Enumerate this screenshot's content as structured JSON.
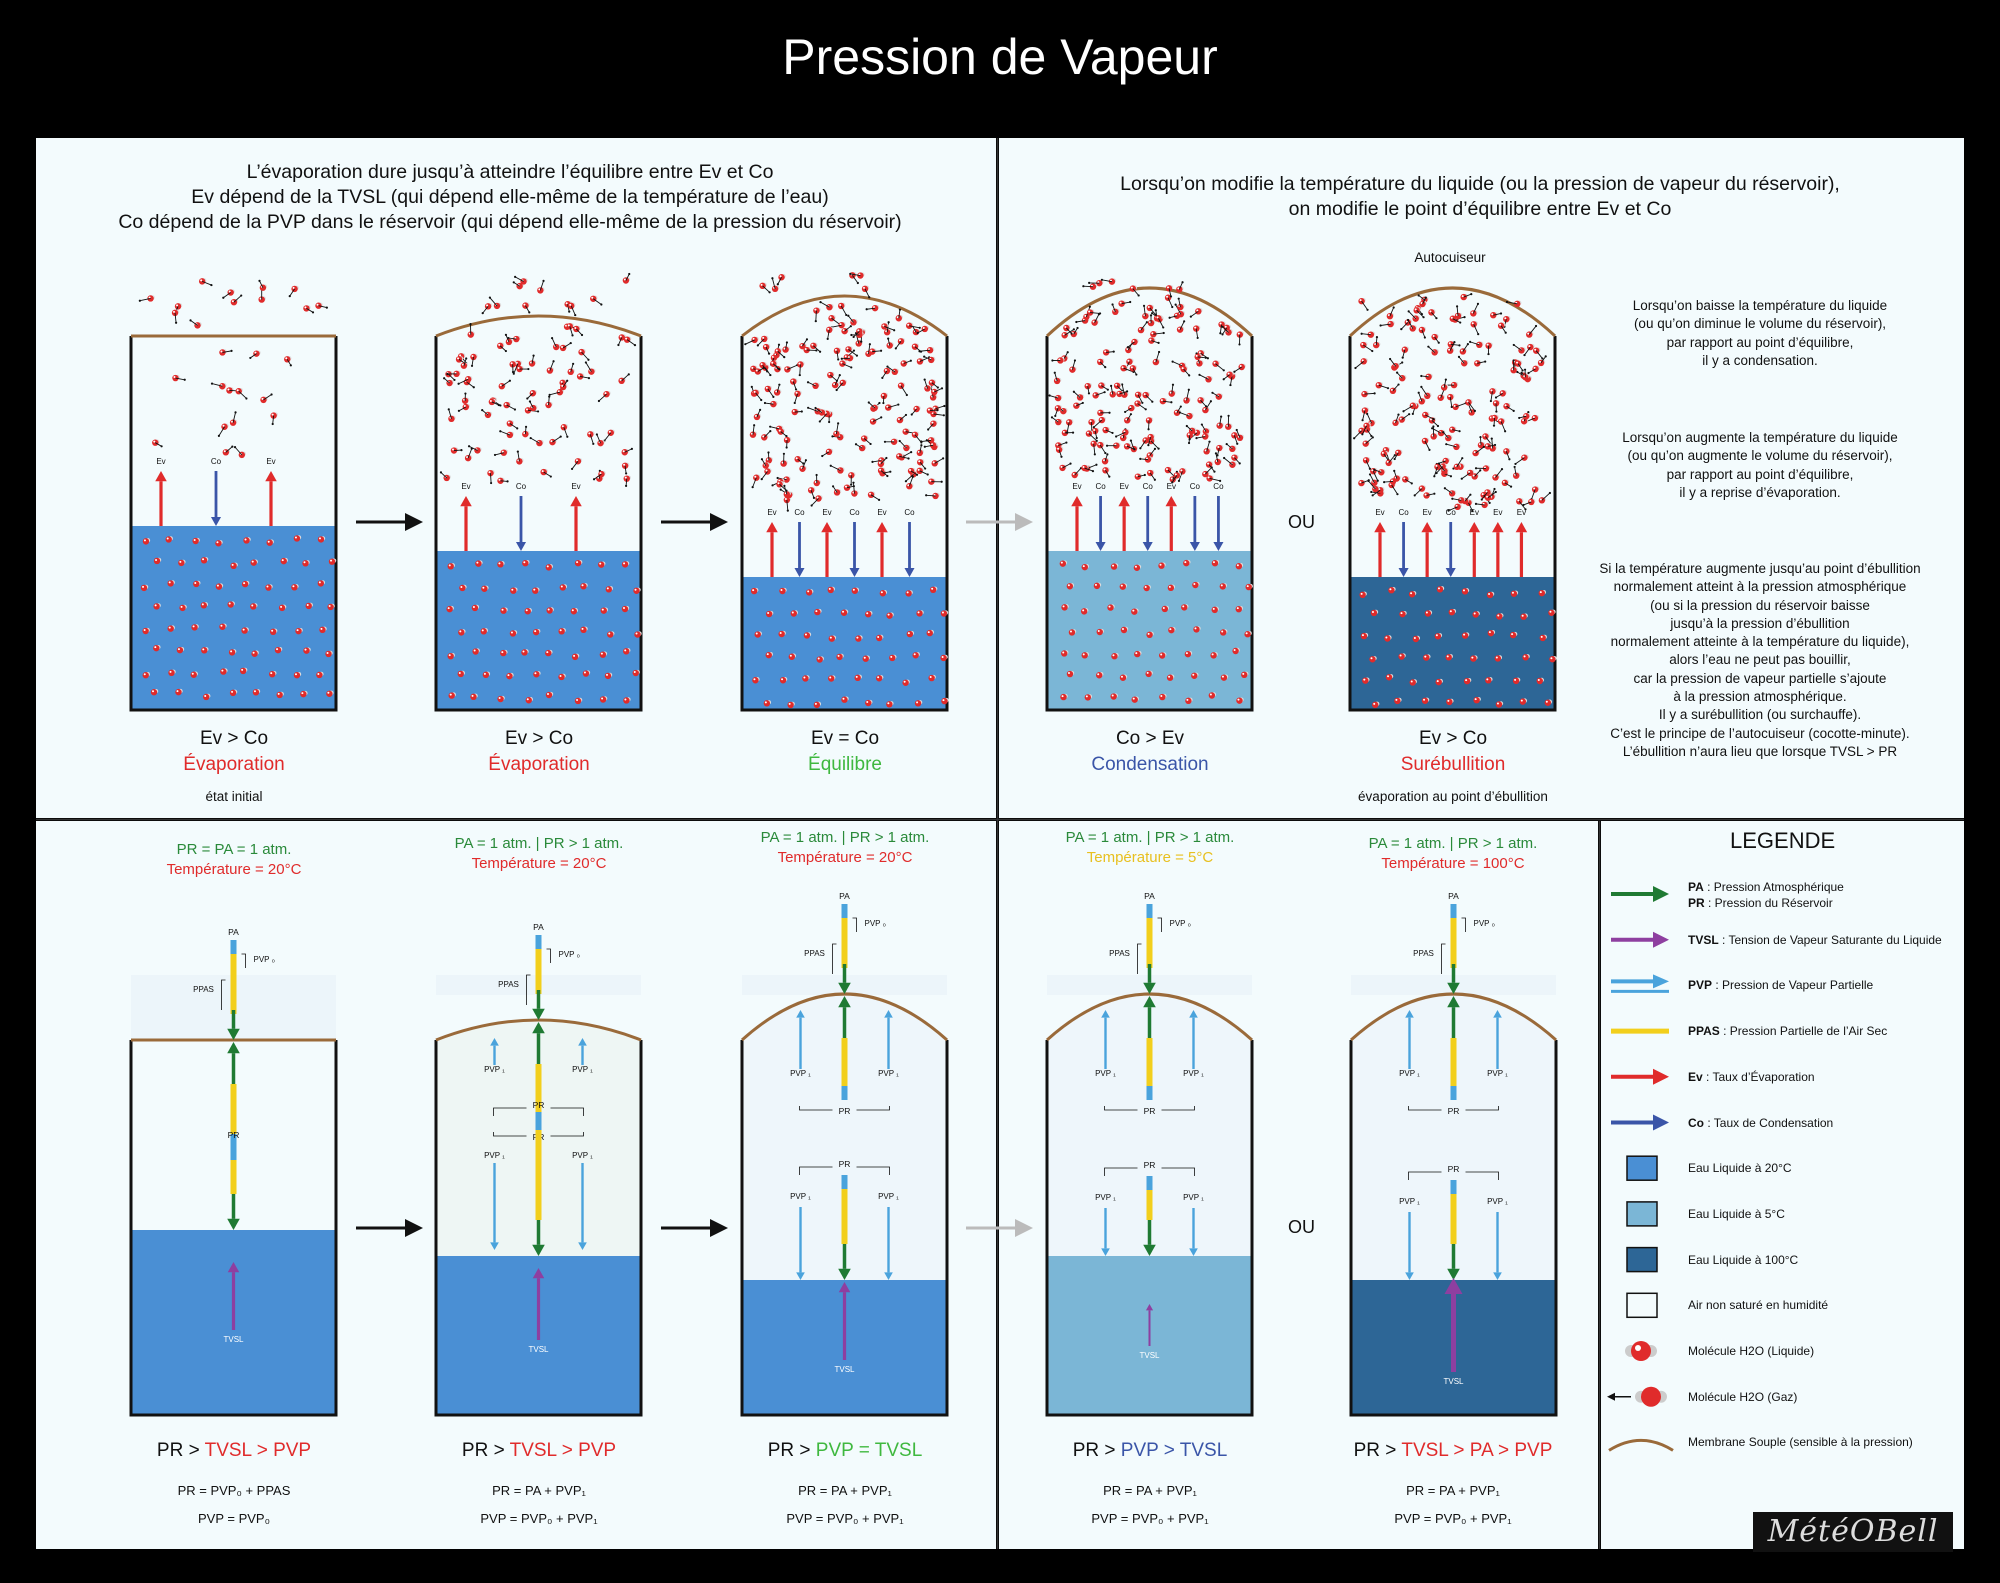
{
  "title": "Pression de Vapeur",
  "top_left_header": [
    "L’évaporation dure jusqu’à atteindre l’équilibre entre Ev et Co",
    "Ev dépend de la TVSL (qui dépend elle-même de la température de l’eau)",
    "Co dépend de la PVP dans le réservoir (qui dépend elle-même de la pression du réservoir)"
  ],
  "top_right_header": [
    "Lorsqu’on modifie la température du liquide (ou la pression de vapeur du réservoir),",
    "on modifie le point d’équilibre entre Ev et Co"
  ],
  "autocuiseur_label": "Autocuiseur",
  "ou_label": "OU",
  "tanks_top": [
    {
      "relation": "Ev > Co",
      "state": "Évaporation",
      "state_color": "#e02b2b",
      "sub": "état initial"
    },
    {
      "relation": "Ev > Co",
      "state": "Évaporation",
      "state_color": "#e02b2b",
      "sub": ""
    },
    {
      "relation": "Ev = Co",
      "state": "Équilibre",
      "state_color": "#3fb83f",
      "sub": ""
    },
    {
      "relation": "Co > Ev",
      "state": "Condensation",
      "state_color": "#3a55a8",
      "sub": ""
    },
    {
      "relation": "Ev > Co",
      "state": "Surébullition",
      "state_color": "#e02b2b",
      "sub": "évaporation au point d’ébullition"
    }
  ],
  "arrow_labels": {
    "ev": "Ev",
    "co": "Co",
    "pa": "PA",
    "pr": "PR",
    "ppas": "PPAS",
    "pvp0": "PVP ₀",
    "pvp1": "PVP ₁",
    "tvsl": "TVSL"
  },
  "right_notes": [
    [
      "Lorsqu’on baisse la température du liquide",
      "(ou qu’on diminue le volume du réservoir),",
      "par rapport au point d’équilibre,",
      "il y a condensation."
    ],
    [
      "Lorsqu’on augmente la température du liquide",
      "(ou qu’on augmente le volume du réservoir),",
      "par rapport au point d’équilibre,",
      "il y a reprise d’évaporation."
    ],
    [
      "Si la température augmente jusqu’au point d’ébullition",
      "normalement atteint à la pression atmosphérique",
      "(ou si la pression du réservoir baisse",
      "jusqu’à la pression d’ébullition",
      "normalement atteinte à la température du liquide),",
      "alors l’eau ne peut pas bouillir,",
      "car la pression de vapeur partielle s’ajoute",
      "à la pression atmosphérique.",
      "Il y a surébullition (ou surchauffe).",
      "C’est le principe de l’autocuiseur (cocotte-minute).",
      "L’ébullition n’aura lieu que lorsque TVSL > PR"
    ]
  ],
  "tanks_bottom": [
    {
      "pressure": "PR = PA = 1 atm.",
      "pressure_color": "#2a8a3a",
      "temp": "Température = 20°C",
      "temp_color": "#e02b2b",
      "cap_pre": "PR > ",
      "cap_main": "TVSL > PVP",
      "cap_color": "#e02b2b",
      "eq1": "PR = PVP₀ + PPAS",
      "eq2": "PVP = PVP₀"
    },
    {
      "pressure": "PA = 1 atm. | PR > 1 atm.",
      "pressure_color": "#2a8a3a",
      "temp": "Température = 20°C",
      "temp_color": "#e02b2b",
      "cap_pre": "PR > ",
      "cap_main": "TVSL > PVP",
      "cap_color": "#e02b2b",
      "eq1": "PR = PA + PVP₁",
      "eq2": "PVP = PVP₀ + PVP₁"
    },
    {
      "pressure": "PA = 1 atm. | PR > 1 atm.",
      "pressure_color": "#2a8a3a",
      "temp": "Température = 20°C",
      "temp_color": "#e02b2b",
      "cap_pre": "PR > ",
      "cap_main": "PVP = TVSL",
      "cap_color": "#3fb83f",
      "eq1": "PR = PA + PVP₁",
      "eq2": "PVP = PVP₀ + PVP₁"
    },
    {
      "pressure": "PA = 1 atm. | PR > 1 atm.",
      "pressure_color": "#2a8a3a",
      "temp": "Température = 5°C",
      "temp_color": "#e8c020",
      "cap_pre": "PR > ",
      "cap_main": "PVP > TVSL",
      "cap_color": "#3a55a8",
      "eq1": "PR = PA + PVP₁",
      "eq2": "PVP = PVP₀ + PVP₁"
    },
    {
      "pressure": "PA = 1 atm. | PR > 1 atm.",
      "pressure_color": "#2a8a3a",
      "temp": "Température = 100°C",
      "temp_color": "#e02b2b",
      "cap_pre": "PR > ",
      "cap_main": "TVSL > PA > PVP",
      "cap_color": "#e02b2b",
      "eq1": "PR = PA + PVP₁",
      "eq2": "PVP = PVP₀ + PVP₁"
    }
  ],
  "legend": {
    "title": "LEGENDE",
    "items": [
      {
        "bold": "PA",
        "text": " : Pression Atmosphérique",
        "bold2": "PR",
        "text2": " : Pression du Réservoir",
        "swatch": "arrow",
        "color": "#1f7a33"
      },
      {
        "bold": "TVSL",
        "text": " : Tension de Vapeur Saturante du Liquide",
        "swatch": "arrow",
        "color": "#8e3fa0"
      },
      {
        "bold": "PVP",
        "text": " : Pression de Vapeur Partielle",
        "swatch": "arrow2",
        "color": "#4aa3dc"
      },
      {
        "bold": "PPAS",
        "text": " : Pression Partielle de l’Air Sec",
        "swatch": "bar",
        "color": "#f2cf1c"
      },
      {
        "bold": "Ev",
        "text": " : Taux d’Évaporation",
        "swatch": "arrow",
        "color": "#e02b2b"
      },
      {
        "bold": "Co",
        "text": " : Taux de Condensation",
        "swatch": "arrow",
        "color": "#3a55a8"
      },
      {
        "bold": "",
        "text": "Eau Liquide à 20°C",
        "swatch": "box",
        "color": "#4a8fd4"
      },
      {
        "bold": "",
        "text": "Eau Liquide à 5°C",
        "swatch": "box",
        "color": "#7bb6d6"
      },
      {
        "bold": "",
        "text": "Eau Liquide à 100°C",
        "swatch": "box",
        "color": "#2d6696"
      },
      {
        "bold": "",
        "text": "Air non saturé en humidité",
        "swatch": "box",
        "color": "#f3fbfd"
      },
      {
        "bold": "",
        "text": "Molécule H2O (Liquide)",
        "swatch": "mol",
        "color": "#e02b2b"
      },
      {
        "bold": "",
        "text": "Molécule H2O (Gaz)",
        "swatch": "molgas",
        "color": "#e02b2b"
      },
      {
        "bold": "",
        "text": "Membrane Souple (sensible à la pression)",
        "swatch": "curve",
        "color": "#9a6a3a"
      }
    ]
  },
  "logo": "MétéOBell"
}
